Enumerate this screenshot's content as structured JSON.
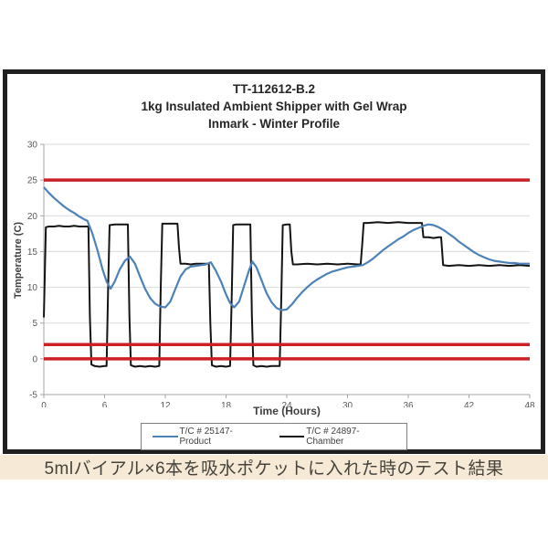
{
  "frame": {
    "border_color": "#1f1f1f"
  },
  "title": {
    "line1": "TT-112612-B.2",
    "line2": "1kg Insulated Ambient Shipper with Gel Wrap",
    "line3": "Inmark - Winter Profile"
  },
  "caption": {
    "text": "5mlバイアル×6本を吸水ポケットに入れた時のテスト結果",
    "bg": "#f6ead6",
    "color": "#45433c"
  },
  "legend": {
    "items": [
      {
        "label": "T/C # 25147-Product",
        "color": "#4d82b8"
      },
      {
        "label": "T/C # 24897-Chamber",
        "color": "#141414"
      }
    ]
  },
  "chart_data": {
    "type": "line",
    "title": "TT-112612-B.2 | 1kg Insulated Ambient Shipper with Gel Wrap | Inmark - Winter Profile",
    "xlabel": "Time (Hours)",
    "ylabel": "Temperature (C)",
    "xlim": [
      0,
      48
    ],
    "ylim": [
      -5,
      30
    ],
    "x_ticks": [
      0,
      6,
      12,
      18,
      24,
      30,
      36,
      42,
      48
    ],
    "y_ticks": [
      30,
      25,
      20,
      15,
      10,
      5,
      0,
      -5
    ],
    "grid": "horizontal",
    "grid_color": "#d9d9d9",
    "axis_color": "#a6a6a6",
    "tick_label_color": "#595959",
    "legend_position": "bottom",
    "reference_lines": [
      {
        "name": "upper-limit",
        "y": 25,
        "color": "#cb2026",
        "width": 3.5
      },
      {
        "name": "lower-limit-2C",
        "y": 2,
        "color": "#cb2026",
        "width": 3.5
      },
      {
        "name": "lower-limit-0C",
        "y": 0,
        "color": "#cb2026",
        "width": 3.5
      }
    ],
    "series": [
      {
        "name": "T/C # 24897-Chamber",
        "color": "#141414",
        "width": 2,
        "points": [
          [
            0,
            5.8
          ],
          [
            0.1,
            12
          ],
          [
            0.2,
            18.4
          ],
          [
            0.5,
            18.5
          ],
          [
            1,
            18.5
          ],
          [
            1.5,
            18.6
          ],
          [
            2,
            18.5
          ],
          [
            2.5,
            18.5
          ],
          [
            3,
            18.6
          ],
          [
            3.5,
            18.5
          ],
          [
            4,
            18.5
          ],
          [
            4.4,
            18.5
          ],
          [
            4.55,
            6
          ],
          [
            4.7,
            -0.8
          ],
          [
            5,
            -1
          ],
          [
            5.5,
            -1.1
          ],
          [
            6,
            -1
          ],
          [
            6.2,
            -1
          ],
          [
            6.35,
            10
          ],
          [
            6.5,
            18.7
          ],
          [
            7,
            18.8
          ],
          [
            7.5,
            18.8
          ],
          [
            8,
            18.8
          ],
          [
            8.3,
            18.8
          ],
          [
            8.45,
            6
          ],
          [
            8.6,
            -0.9
          ],
          [
            9,
            -1.1
          ],
          [
            9.5,
            -1
          ],
          [
            10,
            -1.1
          ],
          [
            10.5,
            -1
          ],
          [
            11,
            -1.1
          ],
          [
            11.4,
            -1
          ],
          [
            11.55,
            10
          ],
          [
            11.7,
            18.9
          ],
          [
            12,
            18.9
          ],
          [
            12.5,
            18.9
          ],
          [
            13,
            18.9
          ],
          [
            13.2,
            18.9
          ],
          [
            13.35,
            15.5
          ],
          [
            13.5,
            13.3
          ],
          [
            14,
            13.3
          ],
          [
            14.5,
            13.2
          ],
          [
            15,
            13.3
          ],
          [
            15.5,
            13.3
          ],
          [
            16,
            13.3
          ],
          [
            16.3,
            13.3
          ],
          [
            16.45,
            5
          ],
          [
            16.6,
            -0.9
          ],
          [
            17,
            -1.1
          ],
          [
            17.5,
            -1
          ],
          [
            18,
            -1.1
          ],
          [
            18.4,
            -1
          ],
          [
            18.55,
            8
          ],
          [
            18.7,
            18.7
          ],
          [
            19,
            18.8
          ],
          [
            19.5,
            18.8
          ],
          [
            20,
            18.8
          ],
          [
            20.4,
            18.8
          ],
          [
            20.55,
            6
          ],
          [
            20.7,
            -0.9
          ],
          [
            21,
            -1.1
          ],
          [
            21.5,
            -1
          ],
          [
            22,
            -1.1
          ],
          [
            22.5,
            -1
          ],
          [
            23,
            -1
          ],
          [
            23.3,
            -1
          ],
          [
            23.45,
            8
          ],
          [
            23.6,
            18.7
          ],
          [
            24,
            18.8
          ],
          [
            24.3,
            18.8
          ],
          [
            24.45,
            15
          ],
          [
            24.6,
            13.2
          ],
          [
            25,
            13.2
          ],
          [
            26,
            13.3
          ],
          [
            27,
            13.2
          ],
          [
            28,
            13.3
          ],
          [
            29,
            13.2
          ],
          [
            30,
            13.3
          ],
          [
            31,
            13.2
          ],
          [
            31.3,
            13.2
          ],
          [
            31.45,
            16
          ],
          [
            31.6,
            19
          ],
          [
            32,
            19
          ],
          [
            33,
            19.1
          ],
          [
            34,
            19
          ],
          [
            35,
            19.1
          ],
          [
            36,
            19
          ],
          [
            37,
            19
          ],
          [
            37.35,
            19
          ],
          [
            37.5,
            17
          ],
          [
            38,
            17
          ],
          [
            38.5,
            16.9
          ],
          [
            39,
            17
          ],
          [
            39.25,
            17
          ],
          [
            39.45,
            13.1
          ],
          [
            40,
            13
          ],
          [
            41,
            13.1
          ],
          [
            42,
            13
          ],
          [
            43,
            13.1
          ],
          [
            44,
            13
          ],
          [
            45,
            13.1
          ],
          [
            46,
            13
          ],
          [
            47,
            13.1
          ],
          [
            48,
            13
          ]
        ]
      },
      {
        "name": "T/C # 25147-Product",
        "color": "#4d82b8",
        "width": 2.2,
        "points": [
          [
            0,
            24.0
          ],
          [
            0.5,
            23.2
          ],
          [
            1,
            22.5
          ],
          [
            1.5,
            21.9
          ],
          [
            2,
            21.3
          ],
          [
            2.5,
            20.8
          ],
          [
            3,
            20.4
          ],
          [
            3.5,
            19.9
          ],
          [
            4,
            19.5
          ],
          [
            4.3,
            19.3
          ],
          [
            4.8,
            17.5
          ],
          [
            5.3,
            15.2
          ],
          [
            5.8,
            12.5
          ],
          [
            6.2,
            10.8
          ],
          [
            6.6,
            9.8
          ],
          [
            7,
            10.8
          ],
          [
            7.5,
            12.5
          ],
          [
            8,
            13.7
          ],
          [
            8.5,
            14.3
          ],
          [
            9,
            13.3
          ],
          [
            9.5,
            11.5
          ],
          [
            10,
            9.8
          ],
          [
            10.5,
            8.5
          ],
          [
            11,
            7.7
          ],
          [
            11.5,
            7.3
          ],
          [
            12,
            7.2
          ],
          [
            12.5,
            8.0
          ],
          [
            13,
            9.8
          ],
          [
            13.5,
            11.5
          ],
          [
            14,
            12.5
          ],
          [
            14.5,
            12.9
          ],
          [
            15,
            13.0
          ],
          [
            15.5,
            13.1
          ],
          [
            16,
            13.2
          ],
          [
            16.5,
            13.5
          ],
          [
            17,
            12.3
          ],
          [
            17.5,
            10.8
          ],
          [
            18,
            9.0
          ],
          [
            18.4,
            7.8
          ],
          [
            18.8,
            7.2
          ],
          [
            19.3,
            8.0
          ],
          [
            19.8,
            10.3
          ],
          [
            20.3,
            12.5
          ],
          [
            20.6,
            13.6
          ],
          [
            21,
            12.8
          ],
          [
            21.5,
            11.0
          ],
          [
            22,
            9.2
          ],
          [
            22.5,
            7.9
          ],
          [
            23,
            7.1
          ],
          [
            23.5,
            6.8
          ],
          [
            24,
            6.9
          ],
          [
            24.5,
            7.6
          ],
          [
            25,
            8.5
          ],
          [
            25.5,
            9.3
          ],
          [
            26,
            10.0
          ],
          [
            26.5,
            10.6
          ],
          [
            27,
            11.1
          ],
          [
            27.5,
            11.5
          ],
          [
            28,
            11.9
          ],
          [
            28.5,
            12.2
          ],
          [
            29,
            12.4
          ],
          [
            29.5,
            12.6
          ],
          [
            30,
            12.8
          ],
          [
            30.5,
            12.9
          ],
          [
            31,
            13.0
          ],
          [
            31.5,
            13.1
          ],
          [
            32,
            13.5
          ],
          [
            32.5,
            14.0
          ],
          [
            33,
            14.6
          ],
          [
            33.5,
            15.2
          ],
          [
            34,
            15.7
          ],
          [
            34.5,
            16.2
          ],
          [
            35,
            16.7
          ],
          [
            35.5,
            17.1
          ],
          [
            36,
            17.6
          ],
          [
            36.5,
            18.0
          ],
          [
            37,
            18.3
          ],
          [
            37.5,
            18.6
          ],
          [
            38,
            18.8
          ],
          [
            38.5,
            18.7
          ],
          [
            39,
            18.4
          ],
          [
            39.5,
            18.0
          ],
          [
            40,
            17.5
          ],
          [
            40.5,
            17.0
          ],
          [
            41,
            16.4
          ],
          [
            41.5,
            15.9
          ],
          [
            42,
            15.4
          ],
          [
            42.5,
            14.9
          ],
          [
            43,
            14.5
          ],
          [
            43.5,
            14.2
          ],
          [
            44,
            13.9
          ],
          [
            44.5,
            13.7
          ],
          [
            45,
            13.6
          ],
          [
            45.5,
            13.5
          ],
          [
            46,
            13.4
          ],
          [
            46.5,
            13.4
          ],
          [
            47,
            13.3
          ],
          [
            47.5,
            13.3
          ],
          [
            48,
            13.3
          ]
        ]
      }
    ]
  }
}
